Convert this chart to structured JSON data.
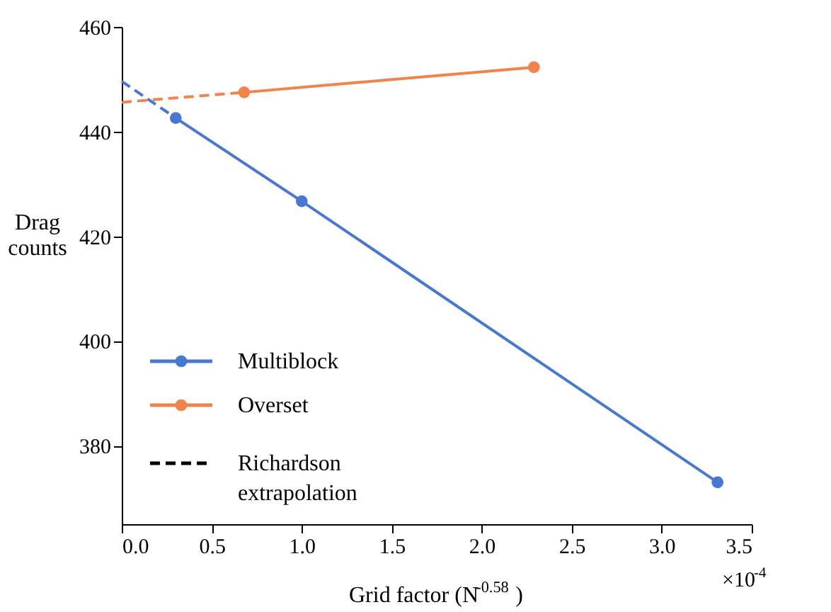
{
  "chart_data": {
    "type": "line",
    "xlabel": "Grid factor (N$^{-0.58}$)",
    "ylabel": "Drag\ncounts",
    "xlim": [
      0,
      3.5
    ],
    "xticks": [
      {
        "value": 0,
        "label": "0.0"
      },
      0.5,
      {
        "value": 1,
        "label": "1.0"
      },
      1.5,
      {
        "value": 2,
        "label": "2.0"
      },
      2.5,
      {
        "value": 3,
        "label": "3.0"
      },
      3.5
    ],
    "ylim": [
      365,
      460
    ],
    "yticks": [
      380,
      400,
      420,
      440,
      460
    ],
    "marker": "circle",
    "line_style": "solid",
    "grid": false,
    "legend": "bottom left",
    "annotations": [
      "×10$^{-4}$"
    ],
    "series": [
      {
        "name": "Multiblock",
        "color": "#4878cf",
        "x": [
          0.3,
          1.0,
          3.31
        ],
        "values": [
          442.6,
          426.7,
          373.0
        ]
      },
      {
        "name": "Overset",
        "color": "#f0844c",
        "x": [
          0.68,
          2.29
        ],
        "values": [
          447.5,
          452.3
        ]
      },
      {
        "color": "#4878cf",
        "line_style": "dashed",
        "marker": "none",
        "x": [
          0,
          0.3
        ],
        "values": [
          449.6,
          442.6
        ]
      },
      {
        "color": "#f0844c",
        "line_style": "dashed",
        "marker": "none",
        "x": [
          0,
          0.68
        ],
        "values": [
          445.6,
          447.5
        ]
      },
      {
        "name": "Richardson\nextrapolation",
        "color": "#000000",
        "line_style": "dashed",
        "marker": "none"
      }
    ]
  }
}
